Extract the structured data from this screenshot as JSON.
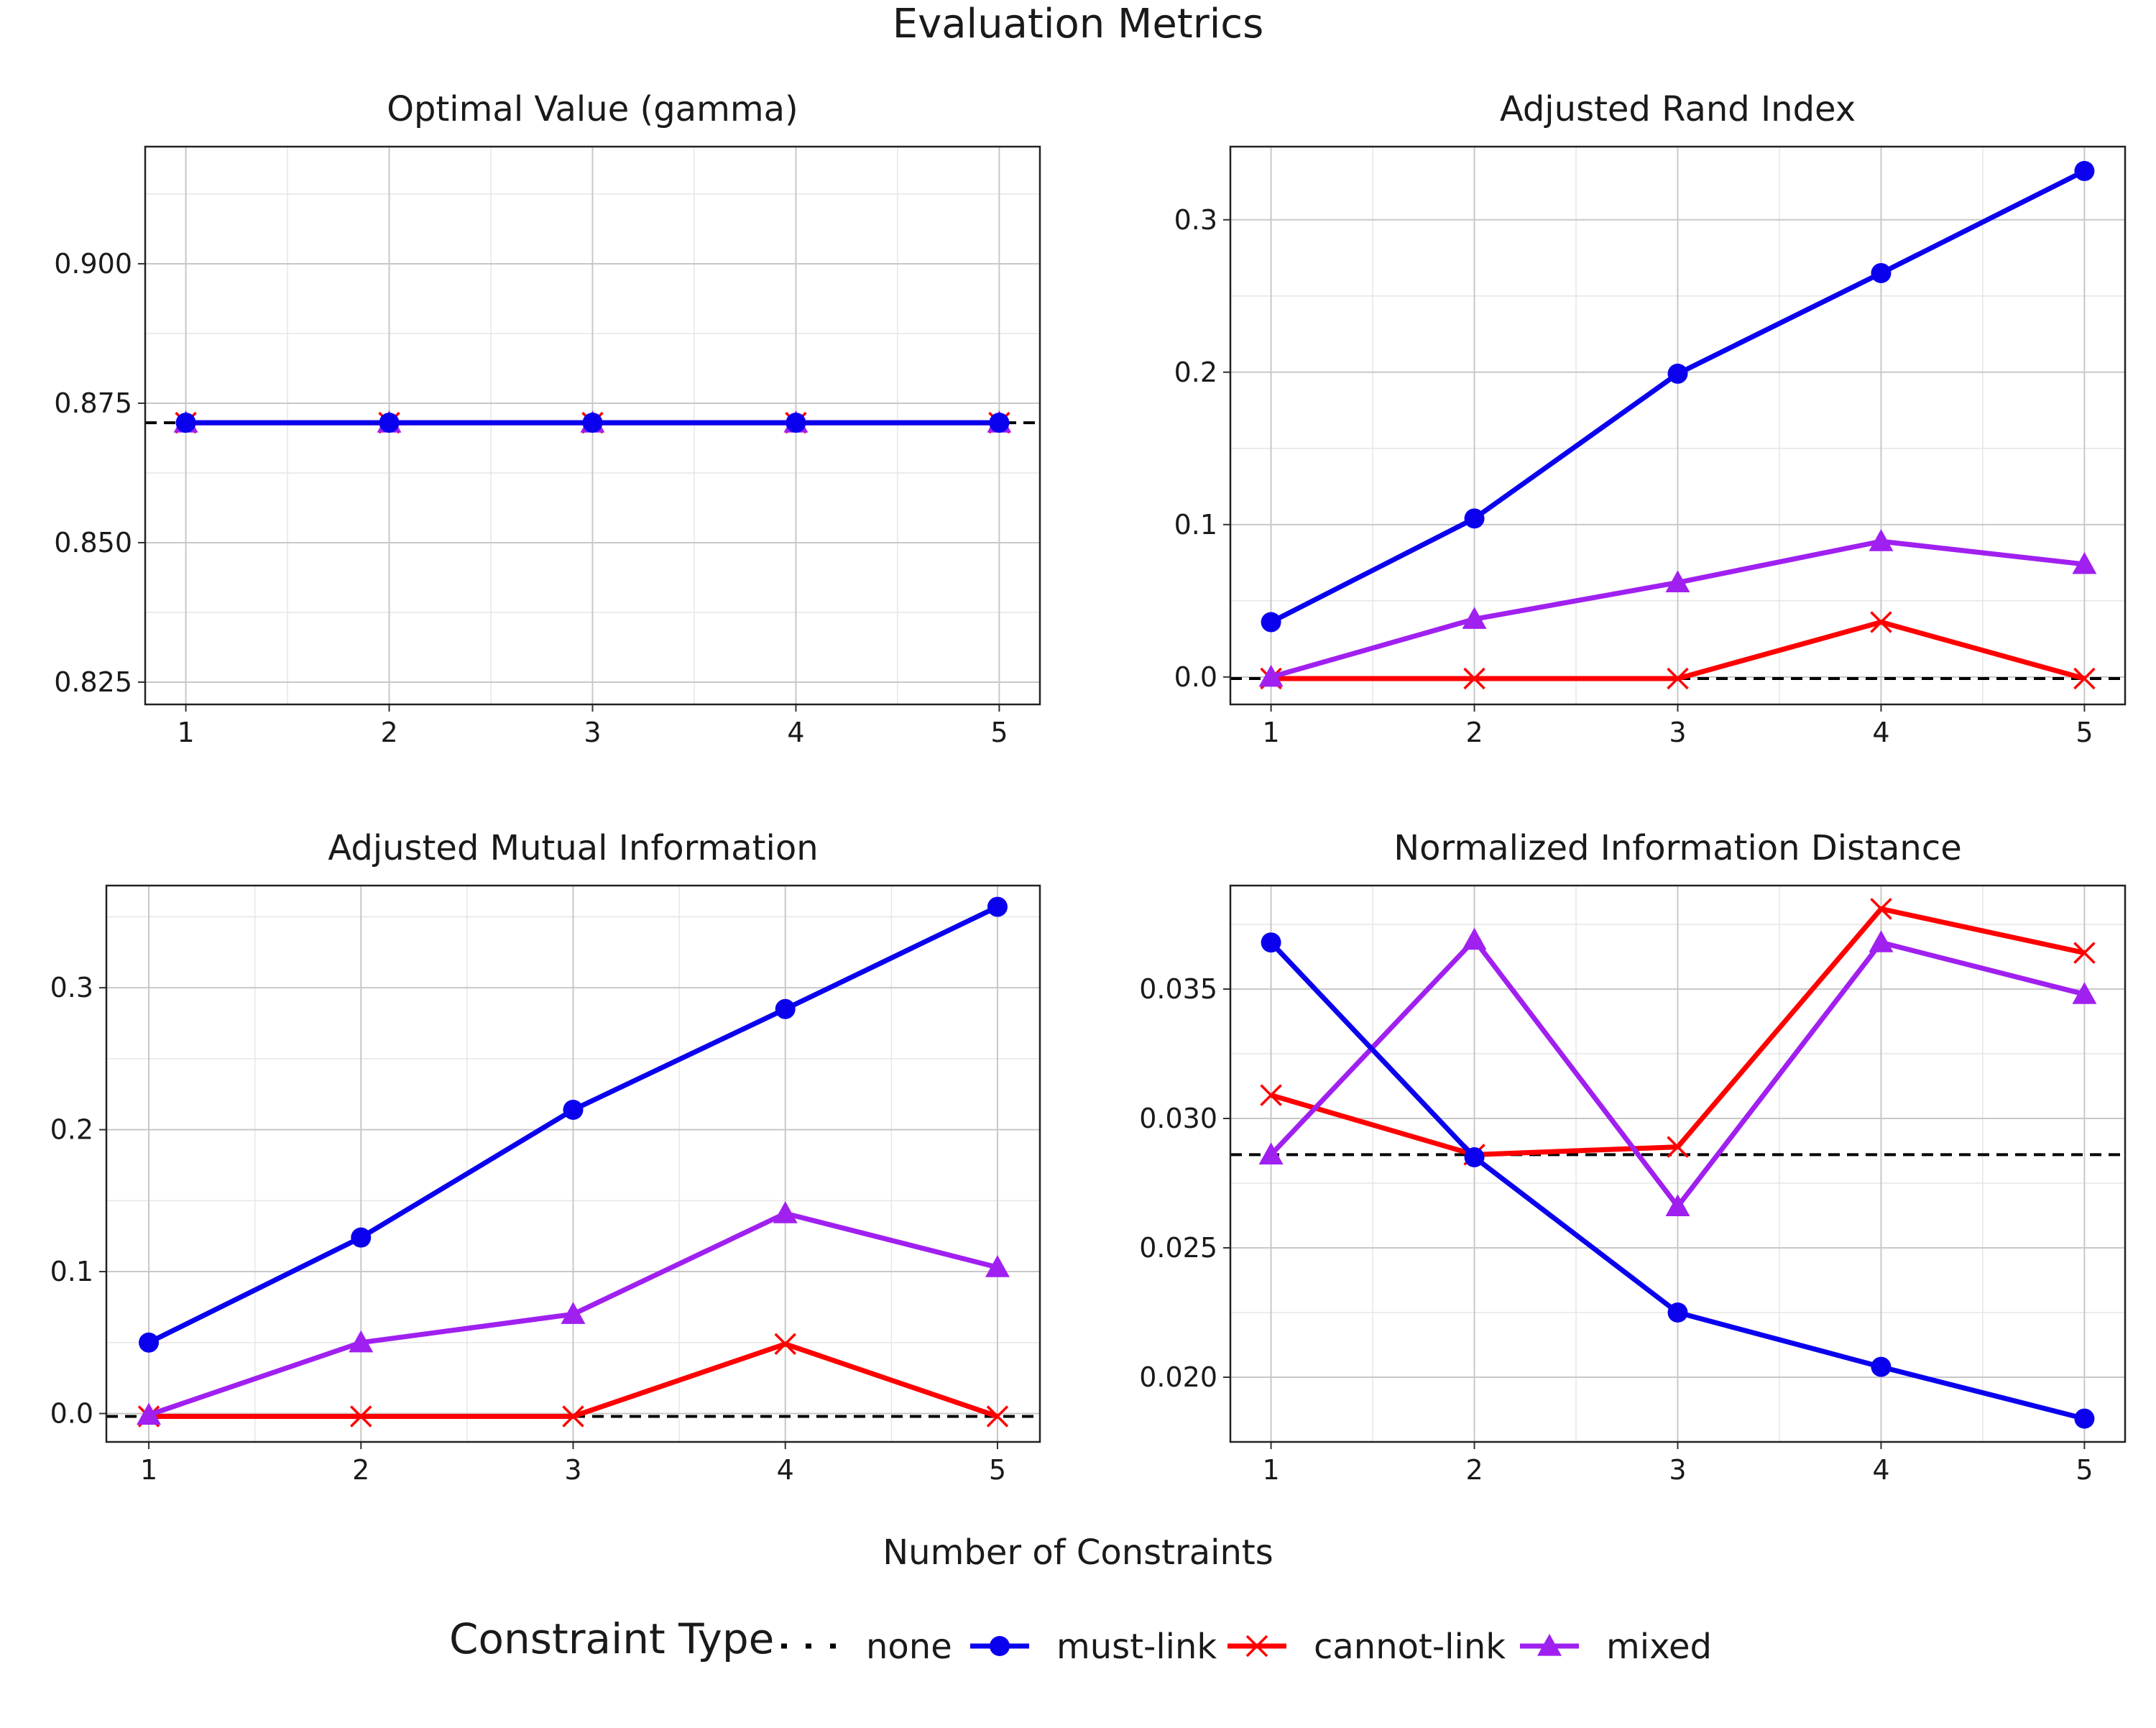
{
  "figure": {
    "title": "Evaluation Metrics",
    "xlabel": "Number of Constraints"
  },
  "legend": {
    "title": "Constraint Type",
    "placement": "bottom-center",
    "items": [
      {
        "label": "none",
        "color": "#000000",
        "style": "dashed",
        "marker": "none"
      },
      {
        "label": "must-link",
        "color": "#0a00ee",
        "style": "solid",
        "marker": "circle"
      },
      {
        "label": "cannot-link",
        "color": "#ff0000",
        "style": "solid",
        "marker": "x"
      },
      {
        "label": "mixed",
        "color": "#a020f0",
        "style": "solid",
        "marker": "triangle"
      }
    ]
  },
  "chart_data": [
    {
      "type": "line",
      "title": "Optimal Value (gamma)",
      "xlabel": "",
      "ylabel": "",
      "x": [
        1,
        2,
        3,
        4,
        5
      ],
      "xlim": [
        0.8,
        5.2
      ],
      "ylim": [
        0.821,
        0.921
      ],
      "yticks": [
        0.825,
        0.85,
        0.875,
        0.9
      ],
      "ytick_labels": [
        "0.825",
        "0.850",
        "0.875",
        "0.900"
      ],
      "reference": {
        "name": "none",
        "value": 0.8715
      },
      "grid": true,
      "series": [
        {
          "name": "must-link",
          "values": [
            0.8715,
            0.8715,
            0.8715,
            0.8715,
            0.8715
          ]
        },
        {
          "name": "cannot-link",
          "values": [
            0.8715,
            0.8715,
            0.8715,
            0.8715,
            0.8715
          ]
        },
        {
          "name": "mixed",
          "values": [
            0.8715,
            0.8715,
            0.8715,
            0.8715,
            0.8715
          ]
        }
      ]
    },
    {
      "type": "line",
      "title": "Adjusted Rand Index",
      "xlabel": "",
      "ylabel": "",
      "x": [
        1,
        2,
        3,
        4,
        5
      ],
      "xlim": [
        0.8,
        5.2
      ],
      "ylim": [
        -0.018,
        0.348
      ],
      "yticks": [
        0.0,
        0.1,
        0.2,
        0.3
      ],
      "ytick_labels": [
        "0.0",
        "0.1",
        "0.2",
        "0.3"
      ],
      "reference": {
        "name": "none",
        "value": -0.001
      },
      "grid": true,
      "series": [
        {
          "name": "must-link",
          "values": [
            0.036,
            0.104,
            0.199,
            0.265,
            0.332
          ]
        },
        {
          "name": "cannot-link",
          "values": [
            -0.001,
            -0.001,
            -0.001,
            0.036,
            -0.001
          ]
        },
        {
          "name": "mixed",
          "values": [
            0.0,
            0.038,
            0.062,
            0.089,
            0.074
          ]
        }
      ]
    },
    {
      "type": "line",
      "title": "Adjusted Mutual Information",
      "xlabel": "",
      "ylabel": "",
      "x": [
        1,
        2,
        3,
        4,
        5
      ],
      "xlim": [
        0.8,
        5.2
      ],
      "ylim": [
        -0.02,
        0.372
      ],
      "yticks": [
        0.0,
        0.1,
        0.2,
        0.3
      ],
      "ytick_labels": [
        "0.0",
        "0.1",
        "0.2",
        "0.3"
      ],
      "reference": {
        "name": "none",
        "value": -0.002
      },
      "grid": true,
      "series": [
        {
          "name": "must-link",
          "values": [
            0.05,
            0.124,
            0.214,
            0.285,
            0.357
          ]
        },
        {
          "name": "cannot-link",
          "values": [
            -0.002,
            -0.002,
            -0.002,
            0.049,
            -0.002
          ]
        },
        {
          "name": "mixed",
          "values": [
            -0.001,
            0.05,
            0.07,
            0.141,
            0.103
          ]
        }
      ]
    },
    {
      "type": "line",
      "title": "Normalized Information Distance",
      "xlabel": "",
      "ylabel": "",
      "x": [
        1,
        2,
        3,
        4,
        5
      ],
      "xlim": [
        0.8,
        5.2
      ],
      "ylim": [
        0.0175,
        0.039
      ],
      "yticks": [
        0.02,
        0.025,
        0.03,
        0.035
      ],
      "ytick_labels": [
        "0.020",
        "0.025",
        "0.030",
        "0.035"
      ],
      "reference": {
        "name": "none",
        "value": 0.0286
      },
      "grid": true,
      "series": [
        {
          "name": "must-link",
          "values": [
            0.0368,
            0.0285,
            0.0225,
            0.0204,
            0.0184
          ]
        },
        {
          "name": "cannot-link",
          "values": [
            0.0309,
            0.0286,
            0.0289,
            0.0381,
            0.0364
          ]
        },
        {
          "name": "mixed",
          "values": [
            0.0286,
            0.0369,
            0.0266,
            0.0368,
            0.0348
          ]
        }
      ]
    }
  ]
}
